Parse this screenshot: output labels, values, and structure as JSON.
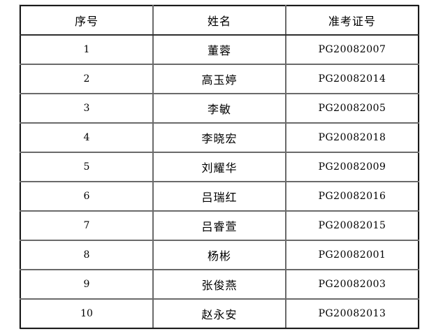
{
  "page": {
    "background_color": "#ffffff",
    "grid_line_color": "#6a6a6a",
    "outer_border_color": "#1a1a1a",
    "text_color": "#000000"
  },
  "table": {
    "columns": {
      "serial": "序号",
      "name": "姓名",
      "ticket": "准考证号"
    },
    "rows": [
      {
        "serial": "1",
        "name": "董蓉",
        "ticket": "PG20082007"
      },
      {
        "serial": "2",
        "name": "高玉婷",
        "ticket": "PG20082014"
      },
      {
        "serial": "3",
        "name": "李敏",
        "ticket": "PG20082005"
      },
      {
        "serial": "4",
        "name": "李晓宏",
        "ticket": "PG20082018"
      },
      {
        "serial": "5",
        "name": "刘耀华",
        "ticket": "PG20082009"
      },
      {
        "serial": "6",
        "name": "吕瑞红",
        "ticket": "PG20082016"
      },
      {
        "serial": "7",
        "name": "吕睿萱",
        "ticket": "PG20082015"
      },
      {
        "serial": "8",
        "name": "杨彬",
        "ticket": "PG20082001"
      },
      {
        "serial": "9",
        "name": "张俊燕",
        "ticket": "PG20082003"
      },
      {
        "serial": "10",
        "name": "赵永安",
        "ticket": "PG20082013"
      }
    ]
  }
}
